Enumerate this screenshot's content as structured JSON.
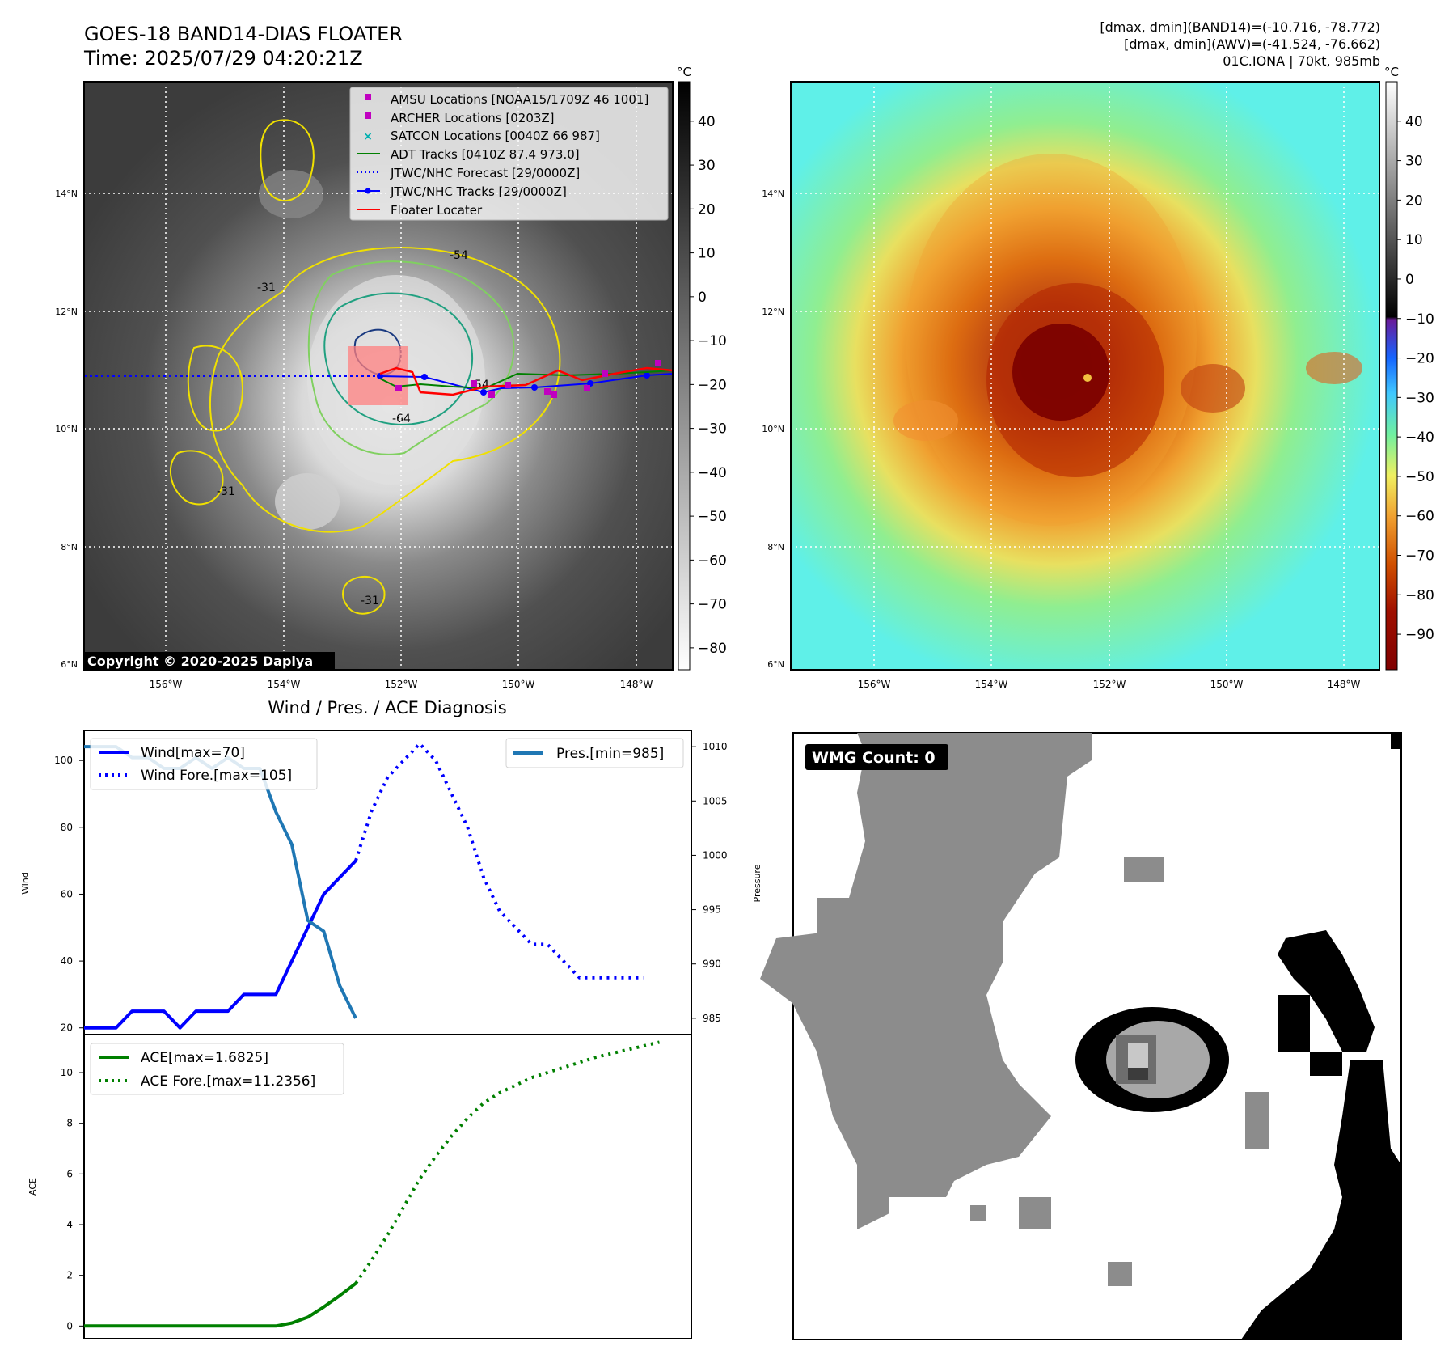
{
  "header": {
    "title_line1": "GOES-18 BAND14-DIAS FLOATER",
    "title_line2": "Time: 2025/07/29 04:20:21Z",
    "info_line1": "[dmax, dmin](BAND14)=(-10.716, -78.772)",
    "info_line2": "[dmax, dmin](AWV)=(-41.524, -76.662)",
    "info_line3": "01C.IONA | 70kt, 985mb"
  },
  "maps": {
    "lat_labels": [
      "14°N",
      "12°N",
      "10°N",
      "8°N",
      "6°N"
    ],
    "lon_labels": [
      "156°W",
      "154°W",
      "152°W",
      "150°W",
      "148°W"
    ],
    "copyright": "Copyright © 2020-2025 Dapiya",
    "contour_labels": [
      "-54",
      "-64",
      "-54",
      "-31",
      "-31",
      "-31"
    ],
    "colorbar_unit": "°C",
    "colorbar1_ticks": [
      "40",
      "30",
      "20",
      "10",
      "0",
      "−10",
      "−20",
      "−30",
      "−40",
      "−50",
      "−60",
      "−70",
      "−80"
    ],
    "colorbar2_ticks": [
      "40",
      "30",
      "20",
      "10",
      "0",
      "−10",
      "−20",
      "−30",
      "−40",
      "−50",
      "−60",
      "−70",
      "−80",
      "−90"
    ],
    "legend": [
      "AMSU Locations [NOAA15/1709Z 46 1001]",
      "ARCHER Locations [0203Z]",
      "SATCON Locations [0040Z 66 987]",
      "ADT Tracks [0410Z 87.4 973.0]",
      "JTWC/NHC Forecast [29/0000Z]",
      "JTWC/NHC Tracks [29/0000Z]",
      "Floater Locater"
    ],
    "colors": {
      "amsu": "#c000c0",
      "archer": "#c000c0",
      "satcon": "#00b0b0",
      "adt": "#008000",
      "forecast": "#0000ff",
      "tracks": "#0000ff",
      "floater": "#ff0000"
    }
  },
  "diag": {
    "title": "Wind / Pres. / ACE Diagnosis",
    "wind_ylabel": "Wind",
    "pres_ylabel": "Pressure",
    "ace_ylabel": "ACE",
    "legend_wind": "Wind[max=70]",
    "legend_wind_fore": "Wind Fore.[max=105]",
    "legend_pres": "Pres.[min=985]",
    "legend_ace": "ACE[max=1.6825]",
    "legend_ace_fore": "ACE Fore.[max=11.2356]",
    "wmg_label": "WMG Count: 0"
  },
  "chart_data": [
    {
      "type": "line",
      "title": "Wind / Pres. / ACE Diagnosis",
      "xlabel": "",
      "ylabel": "Wind",
      "ylabel_right": "Pressure",
      "yticks": [
        20,
        40,
        60,
        80,
        100
      ],
      "yticks_right": [
        985,
        990,
        995,
        1000,
        1005,
        1010
      ],
      "ylim": [
        18,
        109
      ],
      "ylim_right": [
        983.5,
        1011.5
      ],
      "xlim": [
        0,
        38
      ],
      "series": [
        {
          "name": "Wind[max=70]",
          "axis": "left",
          "style": "solid",
          "color": "#0000ff",
          "x": [
            0,
            1,
            2,
            3,
            4,
            5,
            6,
            7,
            8,
            9,
            10,
            11,
            12,
            13,
            14,
            15,
            16,
            17
          ],
          "values": [
            20,
            20,
            20,
            25,
            25,
            25,
            20,
            25,
            25,
            25,
            30,
            30,
            30,
            40,
            50,
            60,
            65,
            70
          ]
        },
        {
          "name": "Wind Fore.[max=105]",
          "axis": "left",
          "style": "dotted",
          "color": "#0000ff",
          "x": [
            17,
            18,
            19,
            20,
            21,
            22,
            23,
            24,
            25,
            26,
            27,
            28,
            29,
            30,
            31,
            32,
            33,
            34,
            35
          ],
          "values": [
            70,
            85,
            95,
            100,
            105,
            100,
            90,
            80,
            65,
            55,
            50,
            45,
            45,
            40,
            35,
            35,
            35,
            35,
            35
          ]
        },
        {
          "name": "Pres.[min=985]",
          "axis": "right",
          "style": "solid",
          "color": "#1f77b4",
          "x": [
            0,
            1,
            2,
            3,
            4,
            5,
            6,
            7,
            8,
            9,
            10,
            11,
            12,
            13,
            14,
            15,
            16,
            17
          ],
          "values": [
            1010,
            1010,
            1010,
            1009,
            1009,
            1008,
            1008,
            1009,
            1008,
            1009,
            1008,
            1008,
            1004,
            1001,
            994,
            993,
            988,
            985
          ]
        }
      ]
    },
    {
      "type": "line",
      "xlabel": "",
      "ylabel": "ACE",
      "yticks": [
        0,
        2,
        4,
        6,
        8,
        10
      ],
      "ylim": [
        -0.5,
        11.5
      ],
      "xlim": [
        0,
        38
      ],
      "series": [
        {
          "name": "ACE[max=1.6825]",
          "style": "solid",
          "color": "#008000",
          "x": [
            0,
            1,
            2,
            3,
            4,
            5,
            6,
            7,
            8,
            9,
            10,
            11,
            12,
            13,
            14,
            15,
            16,
            17
          ],
          "values": [
            0,
            0,
            0,
            0,
            0,
            0,
            0,
            0,
            0,
            0,
            0,
            0,
            0,
            0.12,
            0.35,
            0.75,
            1.2,
            1.68
          ]
        },
        {
          "name": "ACE Fore.[max=11.2356]",
          "style": "dotted",
          "color": "#008000",
          "x": [
            17,
            18,
            19,
            20,
            21,
            22,
            23,
            24,
            25,
            26,
            27,
            28,
            29,
            30,
            31,
            32,
            33,
            34,
            35,
            36
          ],
          "values": [
            1.68,
            2.6,
            3.6,
            4.7,
            5.8,
            6.7,
            7.5,
            8.2,
            8.8,
            9.2,
            9.5,
            9.8,
            10.0,
            10.2,
            10.4,
            10.6,
            10.75,
            10.9,
            11.05,
            11.2
          ]
        }
      ]
    }
  ]
}
